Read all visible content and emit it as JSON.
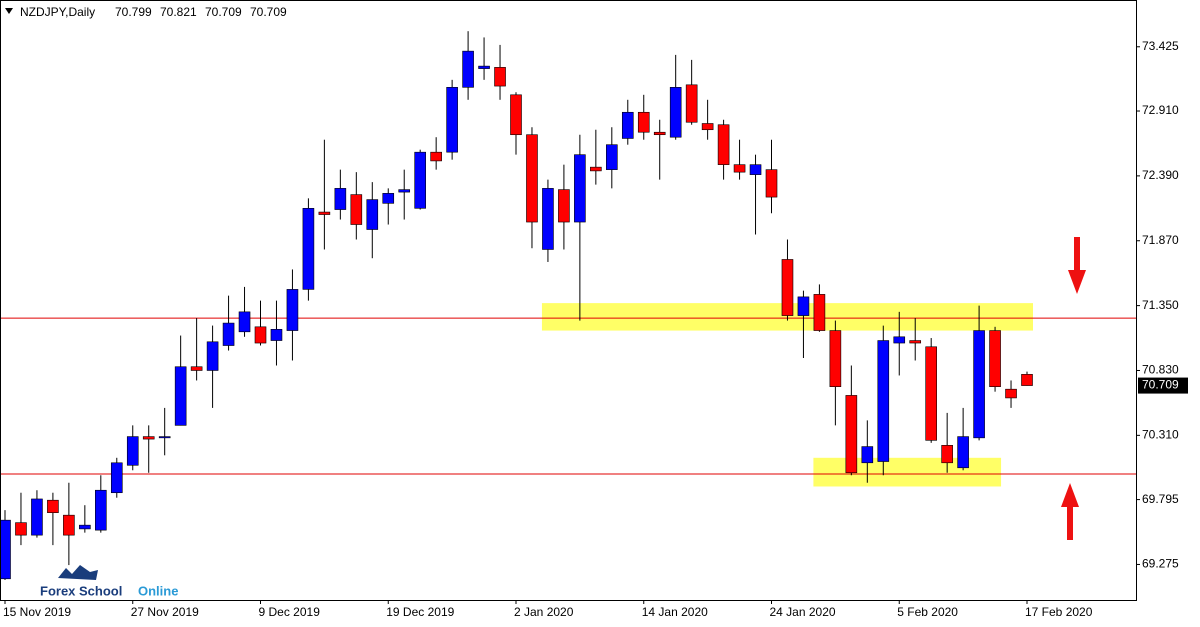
{
  "chart_data": {
    "type": "candlestick",
    "title": "NZDJPY,Daily",
    "categories": [
      "15 Nov 2019",
      null,
      null,
      null,
      null,
      null,
      null,
      null,
      "27 Nov 2019",
      null,
      null,
      null,
      null,
      null,
      null,
      null,
      "9 Dec 2019",
      null,
      null,
      null,
      null,
      null,
      null,
      null,
      "19 Dec 2019",
      null,
      null,
      null,
      null,
      null,
      null,
      null,
      "2 Jan 2020",
      null,
      null,
      null,
      null,
      null,
      null,
      null,
      "14 Jan 2020",
      null,
      null,
      null,
      null,
      null,
      null,
      null,
      "24 Jan 2020",
      null,
      null,
      null,
      null,
      null,
      null,
      null,
      "5 Feb 2020",
      null,
      null,
      null,
      null,
      null,
      null,
      null,
      "17 Feb 2020"
    ],
    "open": [
      69.16,
      69.61,
      69.51,
      69.79,
      69.67,
      69.56,
      69.55,
      69.85,
      70.07,
      70.3,
      70.29,
      70.39,
      70.86,
      70.83,
      71.03,
      71.14,
      71.18,
      71.07,
      71.15,
      71.48,
      72.1,
      72.12,
      72.24,
      71.96,
      72.17,
      72.26,
      72.13,
      72.58,
      72.58,
      73.1,
      73.25,
      73.26,
      73.04,
      72.72,
      71.8,
      72.28,
      72.02,
      72.46,
      72.44,
      72.69,
      72.9,
      72.74,
      72.7,
      73.12,
      72.81,
      72.8,
      72.48,
      72.4,
      72.44,
      71.72,
      71.27,
      71.44,
      71.15,
      70.63,
      70.09,
      70.1,
      71.05,
      71.07,
      71.02,
      70.23,
      70.05,
      70.29,
      71.15,
      70.68,
      70.799
    ],
    "high": [
      69.71,
      69.85,
      69.87,
      69.85,
      69.93,
      69.75,
      69.99,
      70.13,
      70.39,
      70.39,
      70.53,
      71.11,
      71.25,
      71.19,
      71.43,
      71.5,
      71.39,
      71.39,
      71.64,
      72.21,
      72.68,
      72.44,
      72.42,
      72.34,
      72.29,
      72.44,
      72.6,
      72.7,
      73.16,
      73.55,
      73.5,
      73.44,
      73.06,
      72.78,
      72.36,
      72.48,
      72.72,
      72.76,
      72.78,
      73.0,
      73.04,
      72.84,
      73.36,
      73.32,
      73.0,
      72.84,
      72.68,
      72.56,
      72.68,
      71.88,
      71.47,
      71.52,
      71.23,
      70.87,
      70.43,
      71.19,
      71.3,
      71.25,
      71.09,
      70.49,
      70.53,
      71.35,
      71.18,
      70.75,
      70.821
    ],
    "low": [
      69.15,
      69.43,
      69.49,
      69.43,
      69.27,
      69.53,
      69.53,
      69.81,
      70.03,
      70.01,
      70.15,
      70.39,
      70.75,
      70.53,
      70.99,
      71.1,
      71.03,
      70.87,
      70.91,
      71.39,
      71.8,
      72.04,
      71.88,
      71.73,
      72.0,
      72.04,
      72.12,
      72.44,
      72.52,
      73.0,
      73.16,
      73.0,
      72.56,
      71.81,
      71.7,
      71.8,
      71.23,
      72.32,
      72.29,
      72.64,
      72.68,
      72.36,
      72.68,
      72.8,
      72.68,
      72.36,
      72.36,
      71.92,
      72.09,
      71.23,
      70.93,
      71.14,
      70.39,
      69.99,
      69.93,
      69.99,
      70.79,
      70.91,
      70.25,
      70.01,
      70.03,
      70.27,
      70.66,
      70.53,
      70.709
    ],
    "close": [
      69.63,
      69.51,
      69.8,
      69.69,
      69.51,
      69.59,
      69.87,
      70.09,
      70.3,
      70.28,
      70.3,
      70.86,
      70.83,
      71.06,
      71.21,
      71.3,
      71.05,
      71.16,
      71.48,
      72.13,
      72.08,
      72.29,
      72.0,
      72.2,
      72.25,
      72.28,
      72.58,
      72.51,
      73.1,
      73.39,
      73.27,
      73.11,
      72.72,
      72.02,
      72.29,
      72.02,
      72.56,
      72.43,
      72.64,
      72.9,
      72.74,
      72.72,
      73.1,
      72.82,
      72.76,
      72.48,
      72.42,
      72.48,
      72.22,
      71.27,
      71.42,
      71.15,
      70.7,
      70.01,
      70.22,
      71.07,
      71.1,
      71.05,
      70.27,
      70.09,
      70.3,
      71.15,
      70.7,
      70.61,
      70.709
    ],
    "up_color": "#0000ff",
    "down_color": "#ff0000",
    "ylim": [
      68.99,
      73.8
    ],
    "yticks": [
      73.425,
      {
        "value": 72.91,
        "label": "72.910"
      },
      {
        "value": 72.39,
        "label": "72.390"
      },
      {
        "value": 71.87,
        "label": "71.870"
      },
      {
        "value": 71.35,
        "label": "71.350"
      },
      {
        "value": 70.83,
        "label": "70.830"
      },
      {
        "value": 70.31,
        "label": "70.310"
      },
      69.795,
      69.275
    ],
    "hlines": [
      {
        "value": 71.25,
        "color": "#e00000"
      },
      {
        "value": 70.0,
        "color": "#e00000"
      }
    ],
    "zones": [
      {
        "start": 34,
        "end": 64,
        "low": 71.15,
        "high": 71.37,
        "color": "#ffff66"
      },
      {
        "start": 51,
        "end": 62,
        "low": 69.9,
        "high": 70.13,
        "color": "#ffff66"
      }
    ]
  },
  "watermark": {
    "brand": "Forex School",
    "suffix": "Online"
  }
}
